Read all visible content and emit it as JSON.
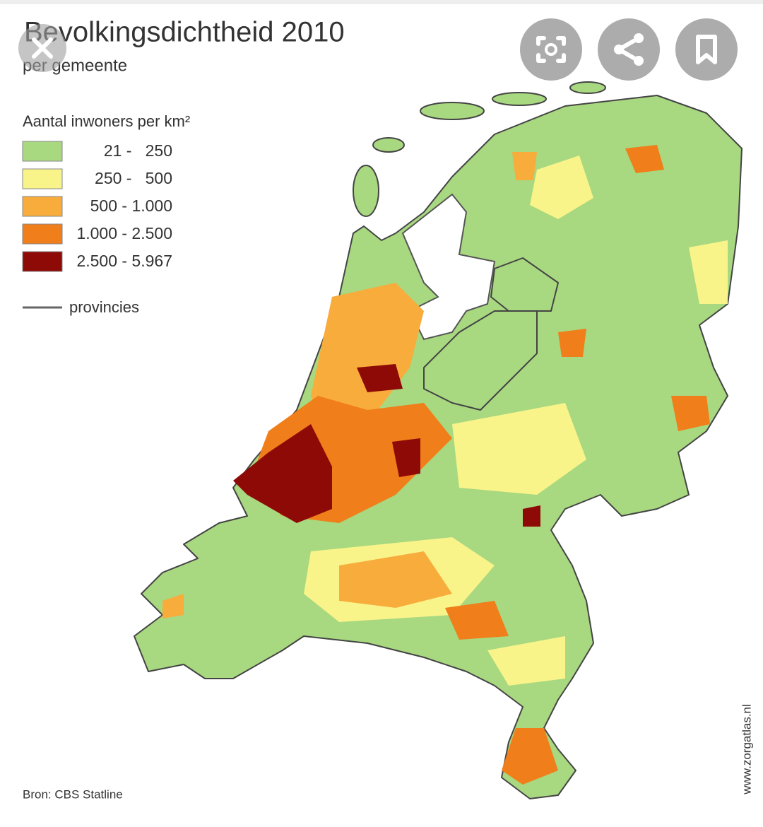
{
  "header": {
    "title": "Bevolkingsdichtheid 2010",
    "subtitle": "per gemeente"
  },
  "legend": {
    "title": "Aantal inwoners per km²",
    "items": [
      {
        "label": "21 -   250",
        "color": "#a8d880"
      },
      {
        "label": "250 -   500",
        "color": "#f8f48a"
      },
      {
        "label": "500 - 1.000",
        "color": "#f8ac3c"
      },
      {
        "label": "1.000 - 2.500",
        "color": "#f07e1a"
      },
      {
        "label": "2.500 - 5.967",
        "color": "#8e0a06"
      }
    ],
    "line_label": "provincies"
  },
  "source": "Bron: CBS Statline",
  "credit": "www.zorgatlas.nl"
}
